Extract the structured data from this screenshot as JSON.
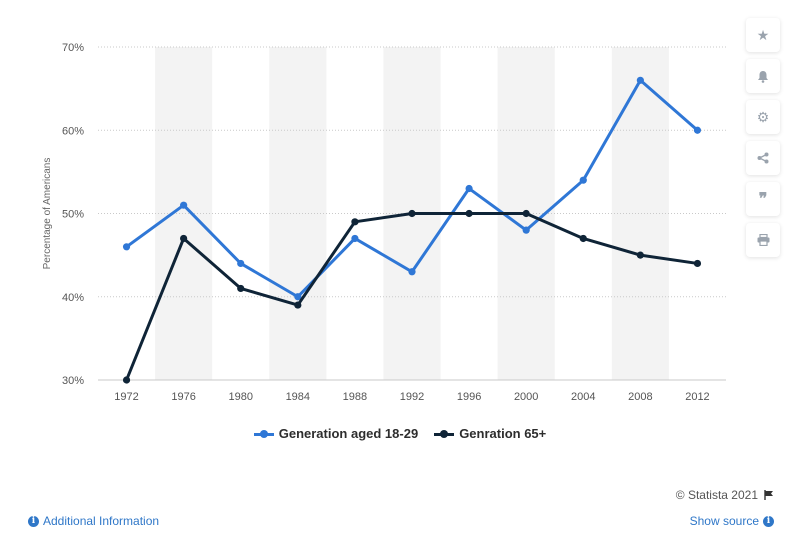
{
  "chart_data": {
    "type": "line",
    "categories": [
      "1972",
      "1976",
      "1980",
      "1984",
      "1988",
      "1992",
      "1996",
      "2000",
      "2004",
      "2008",
      "2012"
    ],
    "series": [
      {
        "name": "Generation aged 18-29",
        "color": "#2f77d6",
        "values": [
          46,
          51,
          44,
          40,
          47,
          43,
          53,
          48,
          54,
          66,
          60
        ]
      },
      {
        "name": "Genration 65+",
        "color": "#0f2437",
        "values": [
          30,
          47,
          41,
          39,
          49,
          50,
          50,
          50,
          47,
          45,
          44
        ]
      }
    ],
    "ylabel": "Percentage of Americans",
    "ylim": [
      30,
      70
    ],
    "yticks": [
      "30%",
      "40%",
      "50%",
      "60%",
      "70%"
    ],
    "grid": true,
    "legend_position": "bottom"
  },
  "toolbar": {
    "icons": [
      "star-icon",
      "bell-icon",
      "gear-icon",
      "share-icon",
      "quote-icon",
      "print-icon"
    ]
  },
  "footer": {
    "credit": "© Statista 2021",
    "additional_info": "Additional Information",
    "show_source": "Show source"
  }
}
